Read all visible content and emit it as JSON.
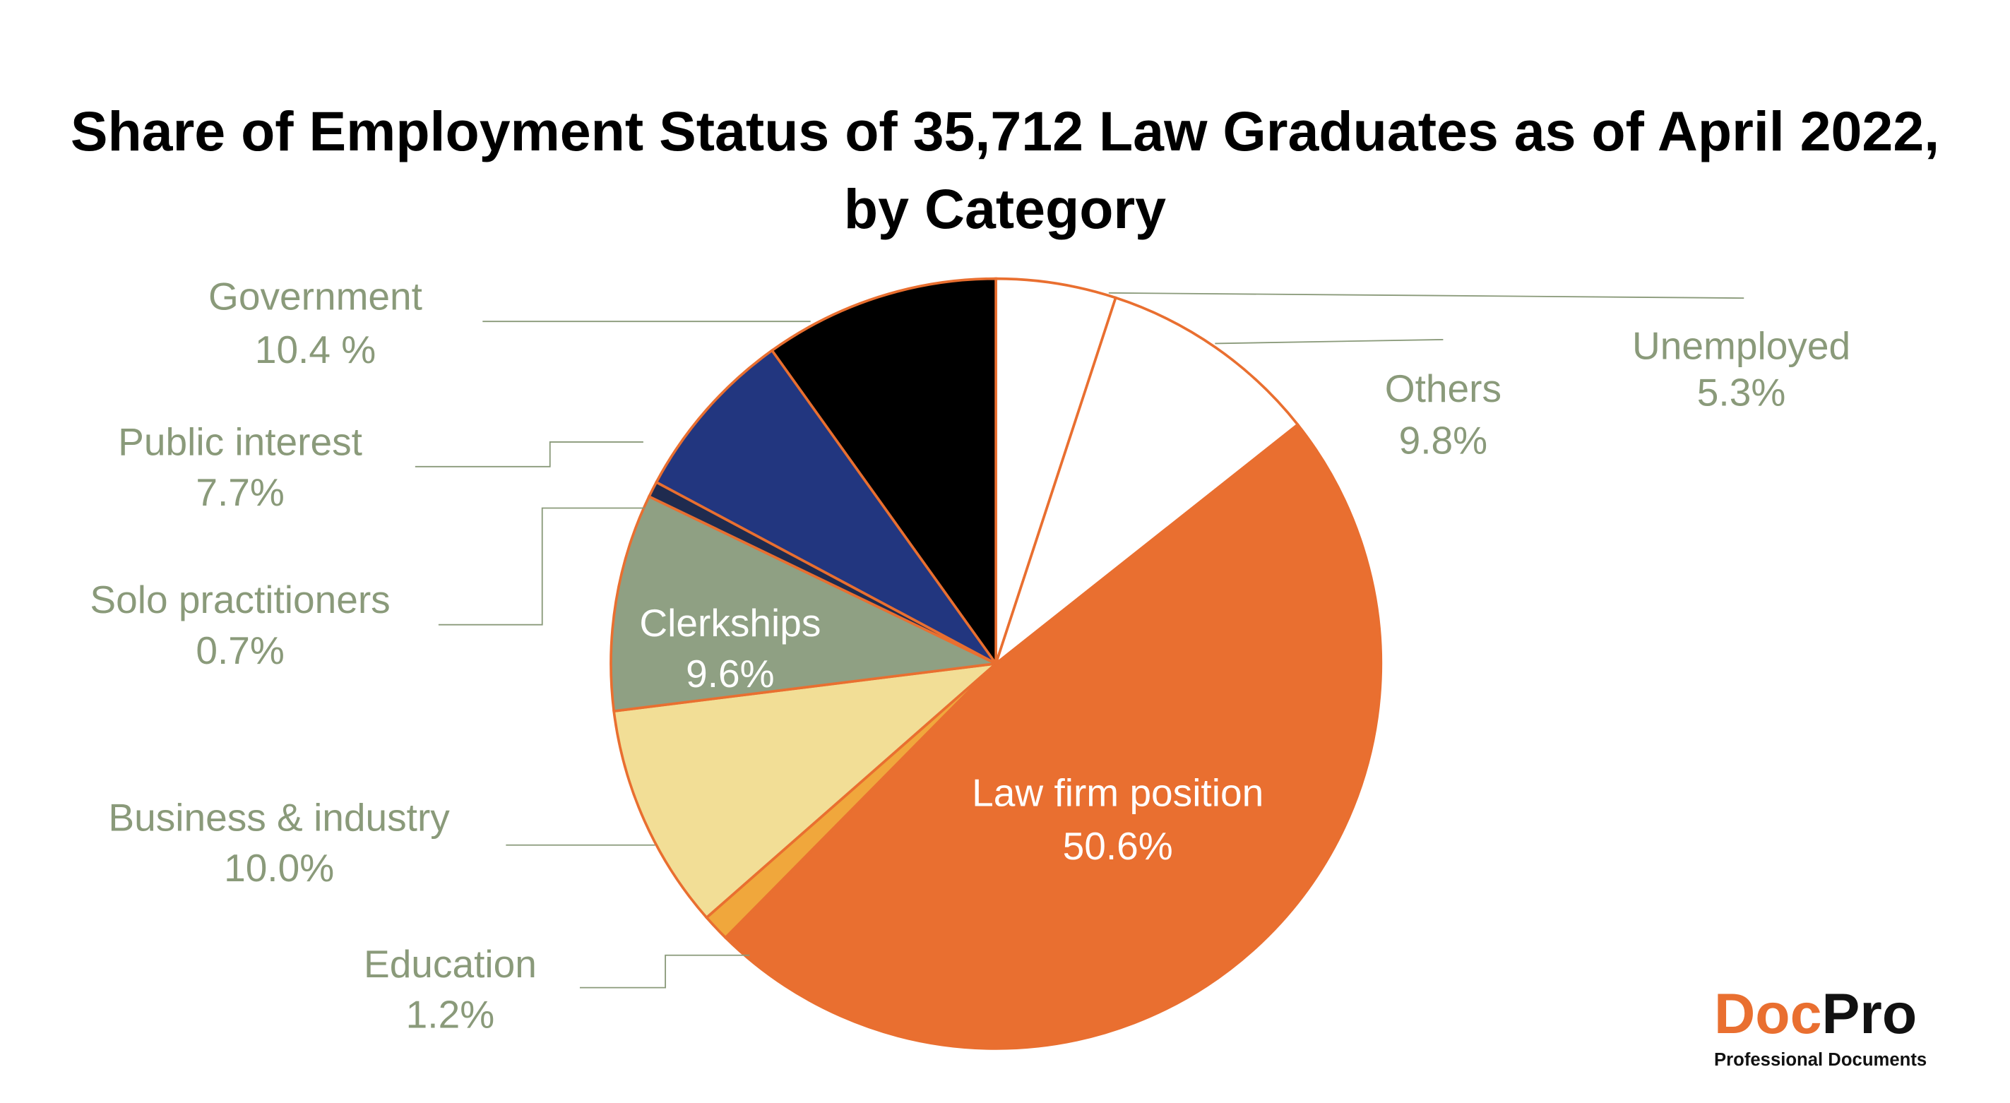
{
  "chart_data": {
    "type": "pie",
    "title": "Share of Employment Status of 35,712 Law Graduates as of April 2022, by Category",
    "categories": [
      "Unemployed",
      "Others",
      "Law firm position",
      "Education",
      "Business & industry",
      "Clerkships",
      "Solo practitioners",
      "Public interest",
      "Government"
    ],
    "values": [
      5.3,
      9.8,
      50.6,
      1.2,
      10.0,
      9.6,
      0.7,
      7.7,
      10.4
    ],
    "value_labels": [
      "5.3%",
      "9.8%",
      "50.6%",
      "1.2%",
      "10.0%",
      "9.6%",
      "0.7%",
      "7.7%",
      "10.4 %"
    ],
    "colors": [
      "#ffffff",
      "#ffffff",
      "#e96f30",
      "#f0a73c",
      "#f2de96",
      "#8fa083",
      "#1f2b4f",
      "#22367f",
      "#000000"
    ]
  },
  "logo": {
    "part1": "Doc",
    "part2": "Pro",
    "tagline": "Professional Documents"
  }
}
